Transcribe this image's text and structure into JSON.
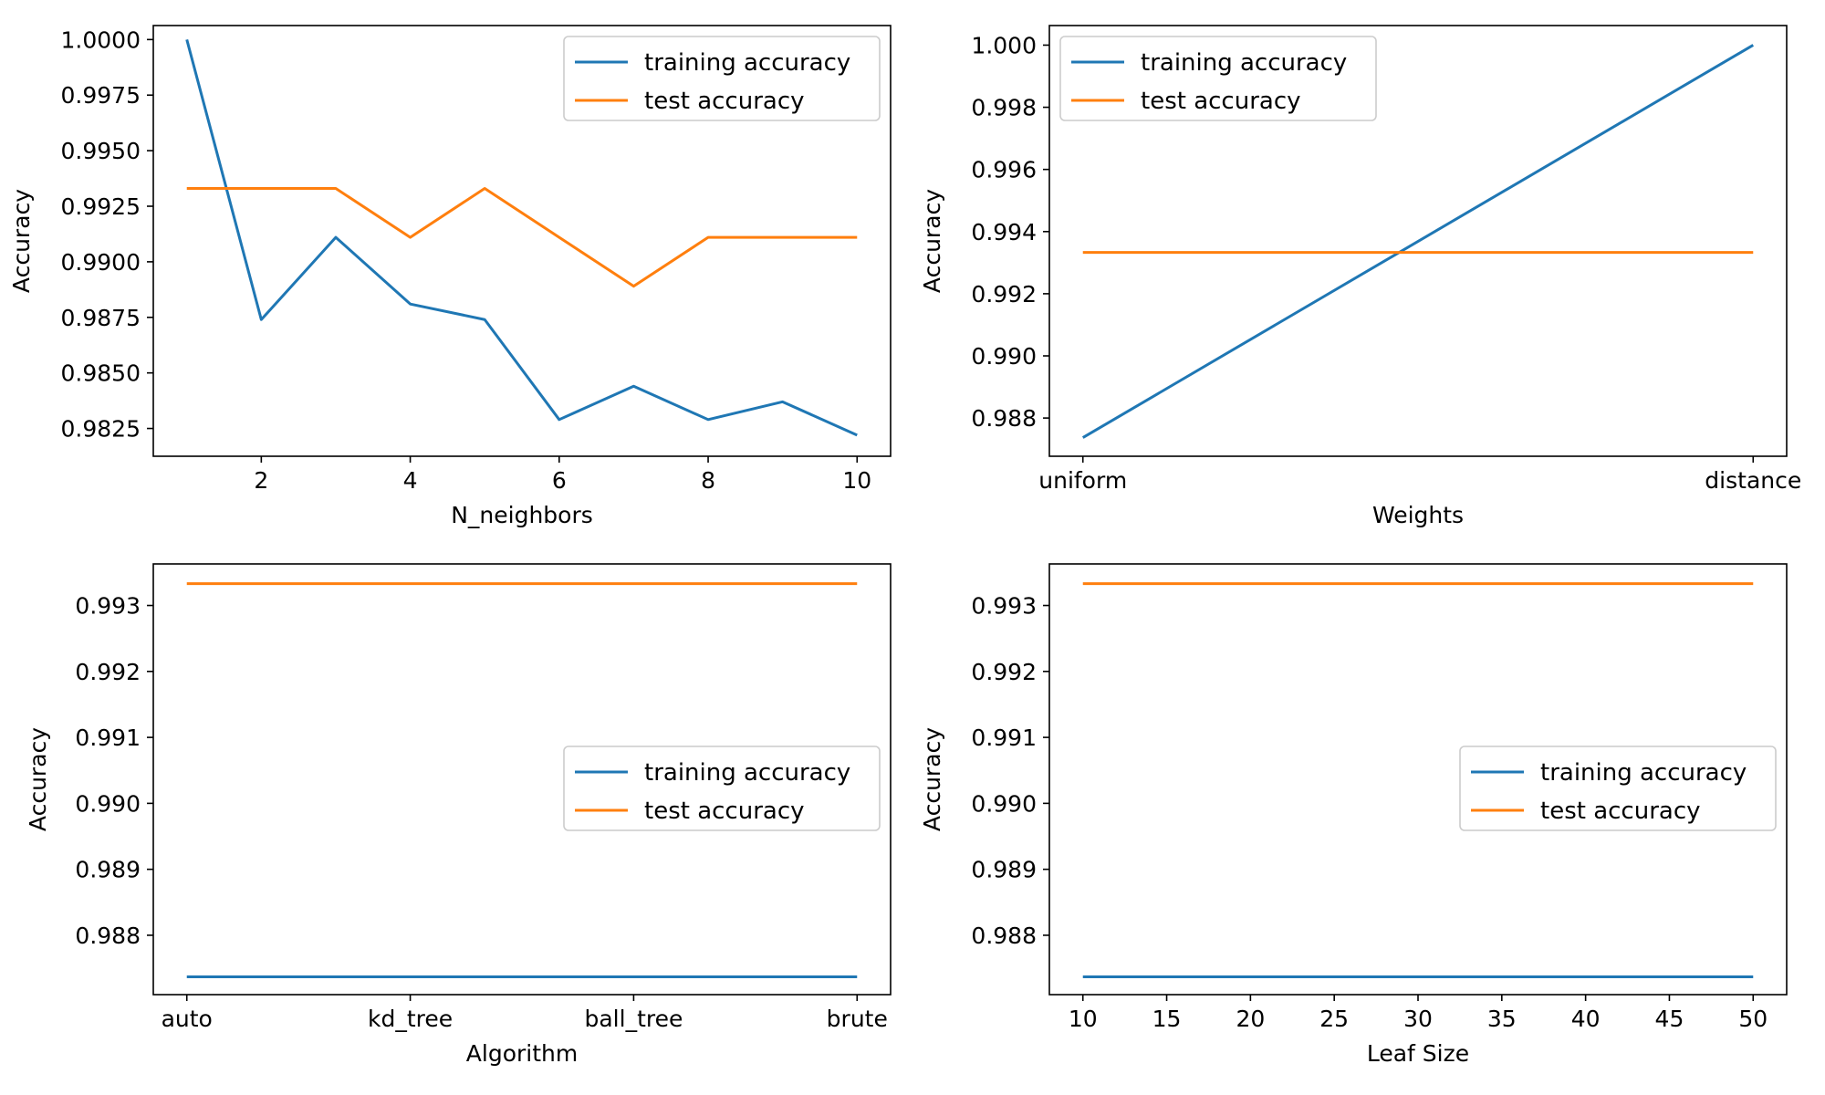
{
  "colors": {
    "training": "#1f77b4",
    "test": "#ff7f0e"
  },
  "chart_data": [
    {
      "type": "line",
      "xlabel": "N_neighbors",
      "ylabel": "Accuracy",
      "x": [
        1,
        2,
        3,
        4,
        5,
        6,
        7,
        8,
        9,
        10
      ],
      "xlim": [
        0.55,
        10.45
      ],
      "ylim": [
        0.98125,
        1.00063
      ],
      "xticks": [
        2,
        4,
        6,
        8,
        10
      ],
      "xtick_labels": [
        "2",
        "4",
        "6",
        "8",
        "10"
      ],
      "yticks": [
        0.9825,
        0.985,
        0.9875,
        0.99,
        0.9925,
        0.995,
        0.9975,
        1.0
      ],
      "ytick_labels": [
        "0.9825",
        "0.9850",
        "0.9875",
        "0.9900",
        "0.9925",
        "0.9950",
        "0.9975",
        "1.0000"
      ],
      "legend_position": "top-right",
      "grid": false,
      "series": [
        {
          "name": "training accuracy",
          "color_key": "training",
          "values": [
            1.0,
            0.9874,
            0.9911,
            0.9881,
            0.9874,
            0.9829,
            0.9844,
            0.9829,
            0.9837,
            0.9822
          ]
        },
        {
          "name": "test accuracy",
          "color_key": "test",
          "values": [
            0.9933,
            0.9933,
            0.9933,
            0.9911,
            0.9933,
            0.9911,
            0.9889,
            0.9911,
            0.9911,
            0.9911
          ]
        }
      ]
    },
    {
      "type": "line",
      "xlabel": "Weights",
      "ylabel": "Accuracy",
      "x": [
        0,
        1
      ],
      "xlim": [
        -0.05,
        1.05
      ],
      "ylim": [
        0.98677,
        1.00063
      ],
      "xticks": [
        0,
        1
      ],
      "xtick_labels": [
        "uniform",
        "distance"
      ],
      "yticks": [
        0.988,
        0.99,
        0.992,
        0.994,
        0.996,
        0.998,
        1.0
      ],
      "ytick_labels": [
        "0.988",
        "0.990",
        "0.992",
        "0.994",
        "0.996",
        "0.998",
        "1.000"
      ],
      "legend_position": "top-left",
      "grid": false,
      "series": [
        {
          "name": "training accuracy",
          "color_key": "training",
          "values": [
            0.98737,
            1.0
          ]
        },
        {
          "name": "test accuracy",
          "color_key": "test",
          "values": [
            0.99333,
            0.99333
          ]
        }
      ]
    },
    {
      "type": "line",
      "xlabel": "Algorithm",
      "ylabel": "Accuracy",
      "x": [
        0,
        1,
        2,
        3
      ],
      "xlim": [
        -0.15,
        3.15
      ],
      "ylim": [
        0.9871,
        0.99363
      ],
      "xticks": [
        0,
        1,
        2,
        3
      ],
      "xtick_labels": [
        "auto",
        "kd_tree",
        "ball_tree",
        "brute"
      ],
      "yticks": [
        0.988,
        0.989,
        0.99,
        0.991,
        0.992,
        0.993
      ],
      "ytick_labels": [
        "0.988",
        "0.989",
        "0.990",
        "0.991",
        "0.992",
        "0.993"
      ],
      "legend_position": "center-right",
      "grid": false,
      "series": [
        {
          "name": "training accuracy",
          "color_key": "training",
          "values": [
            0.98737,
            0.98737,
            0.98737,
            0.98737
          ]
        },
        {
          "name": "test accuracy",
          "color_key": "test",
          "values": [
            0.99333,
            0.99333,
            0.99333,
            0.99333
          ]
        }
      ]
    },
    {
      "type": "line",
      "xlabel": "Leaf Size",
      "ylabel": "Accuracy",
      "x": [
        10,
        20,
        30,
        40,
        50
      ],
      "xlim": [
        8,
        52
      ],
      "ylim": [
        0.9871,
        0.99363
      ],
      "xticks": [
        10,
        15,
        20,
        25,
        30,
        35,
        40,
        45,
        50
      ],
      "xtick_labels": [
        "10",
        "15",
        "20",
        "25",
        "30",
        "35",
        "40",
        "45",
        "50"
      ],
      "yticks": [
        0.988,
        0.989,
        0.99,
        0.991,
        0.992,
        0.993
      ],
      "ytick_labels": [
        "0.988",
        "0.989",
        "0.990",
        "0.991",
        "0.992",
        "0.993"
      ],
      "legend_position": "center-right",
      "grid": false,
      "series": [
        {
          "name": "training accuracy",
          "color_key": "training",
          "values": [
            0.98737,
            0.98737,
            0.98737,
            0.98737,
            0.98737
          ]
        },
        {
          "name": "test accuracy",
          "color_key": "test",
          "values": [
            0.99333,
            0.99333,
            0.99333,
            0.99333,
            0.99333
          ]
        }
      ]
    }
  ]
}
